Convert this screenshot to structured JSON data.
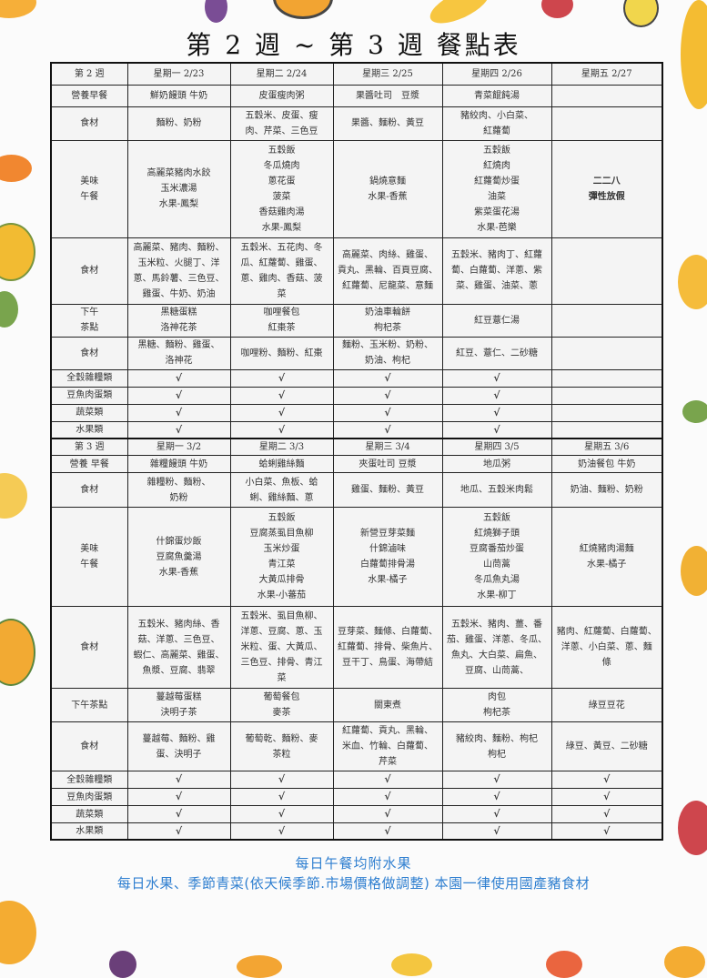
{
  "title": "第 2 週 ~ 第 3 週 餐點表",
  "weeks": [
    {
      "header": [
        "第 2 週",
        "星期一 2/23",
        "星期二 2/24",
        "星期三 2/25",
        "星期四 2/26",
        "星期五 2/27"
      ],
      "rows": [
        {
          "label": "營養早餐",
          "cells": [
            "鮮奶饅頭 牛奶",
            "皮蛋瘦肉粥",
            "果醬吐司　豆漿",
            "青菜餛飩湯",
            ""
          ]
        },
        {
          "label": "食材",
          "cells": [
            "麵粉、奶粉",
            "五穀米、皮蛋、瘦\n肉、芹菜、三色豆",
            "果醬、麵粉、黃豆",
            "豬絞肉、小白菜、\n紅蘿蔔",
            ""
          ]
        },
        {
          "label": "美味\n午餐",
          "cells": [
            "高麗菜豬肉水餃\n玉米濃湯\n水果-鳳梨",
            "五穀飯\n冬瓜燒肉\n蔥花蛋\n菠菜\n香菇雞肉湯\n水果-鳳梨",
            "鍋燒意麵\n水果-香蕉",
            "五穀飯\n紅燒肉\n紅蘿蔔炒蛋\n油菜\n紫菜蛋花湯\n水果-芭樂",
            "二二八\n彈性放假"
          ]
        },
        {
          "label": "食材",
          "cells": [
            "高麗菜、豬肉、麵粉、\n玉米粒、火腿丁、洋\n蔥、馬鈴薯、三色豆、\n雞蛋、牛奶、奶油",
            "五穀米、五花肉、冬\n瓜、紅蘿蔔、雞蛋、\n蔥、雞肉、香菇、菠\n菜",
            "高麗菜、肉絲、雞蛋、\n貢丸、黑輪、百頁豆腐、\n紅蘿蔔、尼龍菜、意麵",
            "五穀米、豬肉丁、紅蘿\n蔔、白蘿蔔、洋蔥、紫\n菜、雞蛋、油菜、蔥",
            ""
          ]
        },
        {
          "label": "下午\n茶點",
          "cells": [
            "黑糖蛋糕\n洛神花茶",
            "咖哩餐包\n紅棗茶",
            "奶油車輪餅\n枸杞茶",
            "紅豆薏仁湯",
            ""
          ]
        },
        {
          "label": "食材",
          "cells": [
            "黑糖、麵粉、雞蛋、\n洛神花",
            "咖哩粉、麵粉、紅棗",
            "麵粉、玉米粉、奶粉、\n奶油、枸杞",
            "紅豆、薏仁、二砂糖",
            ""
          ]
        }
      ],
      "checks": [
        {
          "label": "全穀雜糧類",
          "marks": [
            "√",
            "√",
            "√",
            "√",
            ""
          ]
        },
        {
          "label": "豆魚肉蛋類",
          "marks": [
            "√",
            "√",
            "√",
            "√",
            ""
          ]
        },
        {
          "label": "蔬菜類",
          "marks": [
            "√",
            "√",
            "√",
            "√",
            ""
          ]
        },
        {
          "label": "水果類",
          "marks": [
            "√",
            "√",
            "√",
            "√",
            ""
          ]
        }
      ]
    },
    {
      "header": [
        "第 3 週",
        "星期一 3/2",
        "星期二 3/3",
        "星期三 3/4",
        "星期四 3/5",
        "星期五 3/6"
      ],
      "rows": [
        {
          "label": "營養 早餐",
          "cells": [
            "雜糧饅頭 牛奶",
            "蛤蜊雞絲麵",
            "夾蛋吐司 豆漿",
            "地瓜粥",
            "奶油餐包 牛奶"
          ]
        },
        {
          "label": "食材",
          "cells": [
            "雜糧粉、麵粉、\n奶粉",
            "小白菜、魚板、蛤\n蜊、雞絲麵、蔥",
            "雞蛋、麵粉、黃豆",
            "地瓜、五穀米肉鬆",
            "奶油、麵粉、奶粉"
          ]
        },
        {
          "label": "美味\n午餐",
          "cells": [
            "什錦蛋炒飯\n豆腐魚羹湯\n水果-香蕉",
            "五穀飯\n豆腐蒸虱目魚柳\n玉米炒蛋\n青江菜\n大黃瓜排骨\n水果-小蕃茄",
            "新營豆芽菜麵\n什錦滷味\n白蘿蔔排骨湯\n水果-橘子",
            "五穀飯\n紅燒獅子頭\n豆腐番茄炒蛋\n山茼蒿\n冬瓜魚丸湯\n水果-柳丁",
            "紅燒豬肉湯麵\n水果-橘子"
          ]
        },
        {
          "label": "食材",
          "cells": [
            "五穀米、豬肉絲、香\n菇、洋蔥、三色豆、\n蝦仁、高麗菜、雞蛋、\n魚漿、豆腐、翡翠",
            "五穀米、虱目魚柳、\n洋蔥、豆腐、蔥、玉\n米粒、蛋、大黃瓜、\n三色豆、排骨、青江\n菜",
            "豆芽菜、麵條、白蘿蔔、\n紅蘿蔔、排骨、柴魚片、\n豆干丁、鳥蛋、海帶結",
            "五穀米、豬肉、薑、番\n茄、雞蛋、洋蔥、冬瓜、\n魚丸、大白菜、扁魚、\n豆腐、山茼蒿、",
            "豬肉、紅蘿蔔、白蘿蔔、\n洋蔥、小白菜、蔥、麵\n條"
          ]
        },
        {
          "label": "下午茶點",
          "cells": [
            "蔓越莓蛋糕\n決明子茶",
            "葡萄餐包\n麥茶",
            "關東煮",
            "肉包\n枸杞茶",
            "綠豆豆花"
          ]
        },
        {
          "label": "食材",
          "cells": [
            "蔓越莓、麵粉、雞\n蛋、決明子",
            "葡萄乾、麵粉、麥\n茶粒",
            "紅蘿蔔、貢丸、黑輪、\n米血、竹輪、白蘿蔔、\n芹菜",
            "豬絞肉、麵粉、枸杞\n枸杞",
            "綠豆、黃豆、二砂糖"
          ]
        }
      ],
      "checks": [
        {
          "label": "全穀雜糧類",
          "marks": [
            "√",
            "√",
            "√",
            "√",
            "√"
          ]
        },
        {
          "label": "豆魚肉蛋類",
          "marks": [
            "√",
            "√",
            "√",
            "√",
            "√"
          ]
        },
        {
          "label": "蔬菜類",
          "marks": [
            "√",
            "√",
            "√",
            "√",
            "√"
          ]
        },
        {
          "label": "水果類",
          "marks": [
            "√",
            "√",
            "√",
            "√",
            "√"
          ]
        }
      ]
    }
  ],
  "footer": {
    "line1": "每日午餐均附水果",
    "line2": "每日水果、季節青菜(依天候季節.市場價格做調整) 本園一律使用國產豬食材",
    "color": "#2f7fd0"
  }
}
